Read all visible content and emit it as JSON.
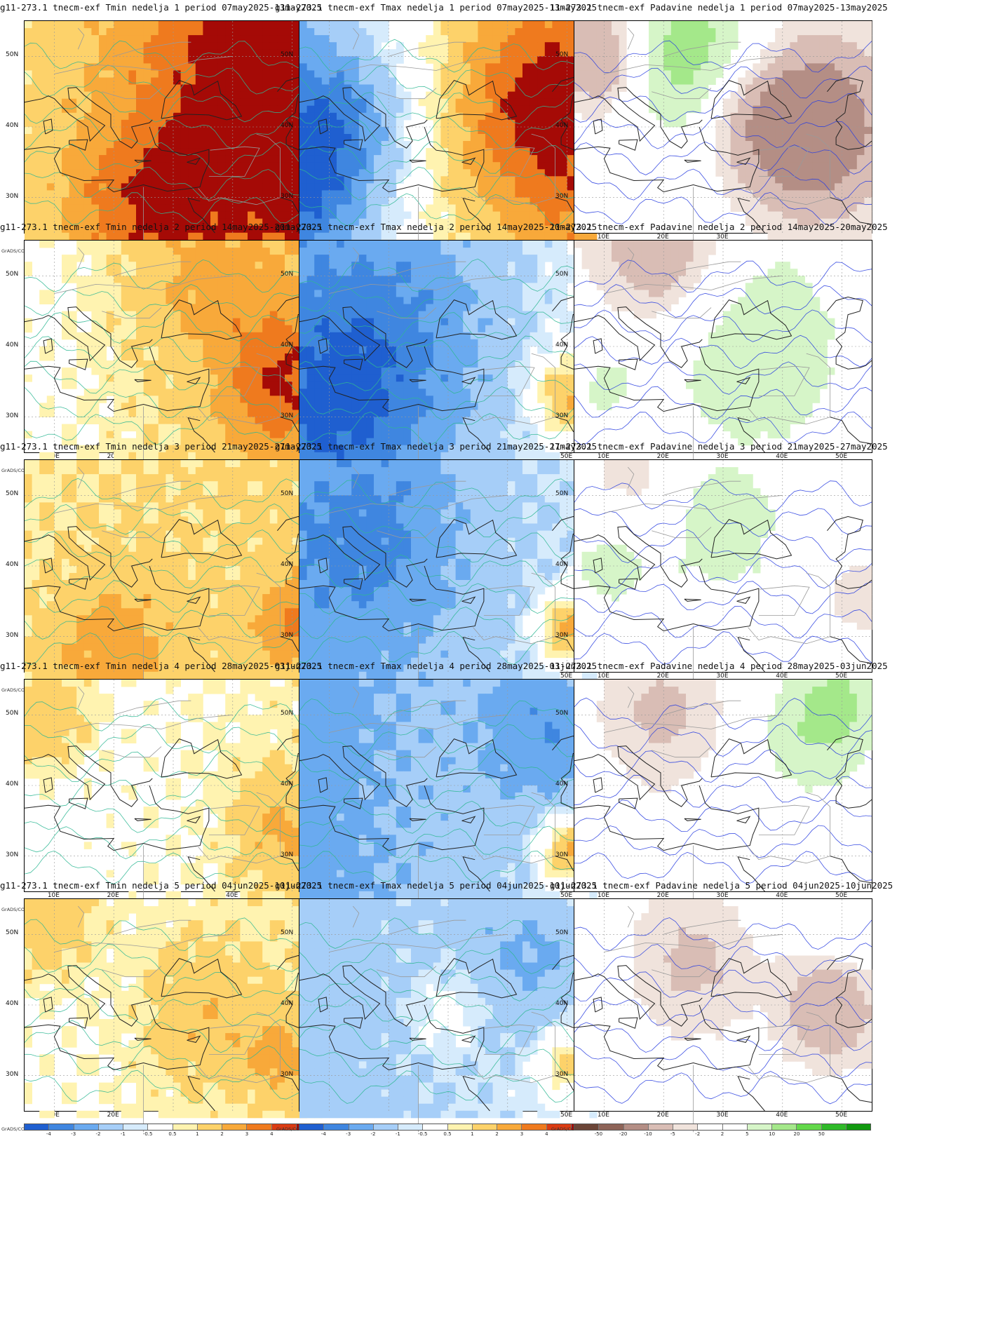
{
  "palettes": {
    "temp": [
      "#1f5fd0",
      "#3f86e0",
      "#6aaaf0",
      "#a6cef8",
      "#d6ebfc",
      "#ffffff",
      "#fff3b0",
      "#fdd26a",
      "#f8a93a",
      "#ef7a1e",
      "#dc3b12",
      "#a50a06"
    ],
    "precip": [
      "#6b4537",
      "#8e6458",
      "#b48e85",
      "#d9bdb5",
      "#f0e3dc",
      "#ffffff",
      "#ffffff",
      "#d6f5c8",
      "#a4e88a",
      "#63d84a",
      "#2fba28",
      "#11990f"
    ]
  },
  "colorbar_labels": {
    "temp": [
      "-4",
      "-3",
      "-2",
      "-1",
      "-0.5",
      "0.5",
      "1",
      "2",
      "3",
      "4"
    ],
    "precip": [
      "-50",
      "-20",
      "-10",
      "-5",
      "-2",
      "2",
      "5",
      "10",
      "20",
      "50"
    ]
  },
  "axis": {
    "x_labels": [
      "10E",
      "20E",
      "30E",
      "40E",
      "50E"
    ],
    "y_labels": [
      "50N",
      "40N",
      "30N"
    ],
    "lon_range": [
      5,
      55
    ],
    "lat_range": [
      25,
      55
    ]
  },
  "credit": "GrADS/COLA",
  "panels": [
    {
      "title": "g11-273.1 tnecm-exf Tmin nedelja 1 period 07may2025-13may2025",
      "palette": "temp",
      "anom": {
        "bias": 2.4,
        "tilt": 1.2,
        "blobs": [
          [
            45,
            44,
            18,
            2.5
          ],
          [
            25,
            28,
            12,
            1.8
          ]
        ]
      }
    },
    {
      "title": "g11-273.1 tnecm-exf Tmax nedelja 1 period 07may2025-13may2025",
      "palette": "temp",
      "anom": {
        "bias": 0.6,
        "tilt": 2.0,
        "blobs": [
          [
            45,
            42,
            14,
            3.0
          ],
          [
            10,
            40,
            12,
            -2.8
          ],
          [
            5,
            30,
            10,
            -2.0
          ]
        ]
      }
    },
    {
      "title": "11-273.1 tnecm-exf Padavine nedelja 1 period 07may2025-13may2025",
      "palette": "precip",
      "anom": {
        "bias": 0.0,
        "tilt": 0.0,
        "blobs": [
          [
            24,
            50,
            12,
            14
          ],
          [
            10,
            50,
            8,
            -12
          ],
          [
            45,
            40,
            12,
            -18
          ],
          [
            32,
            42,
            8,
            -6
          ]
        ]
      }
    },
    {
      "title": "g11-273.1 tnecm-exf Tmin nedelja 2 period 14may2025-20may2025",
      "palette": "temp",
      "anom": {
        "bias": 1.0,
        "tilt": 0.8,
        "blobs": [
          [
            48,
            35,
            10,
            2.5
          ],
          [
            35,
            50,
            12,
            1.2
          ]
        ]
      }
    },
    {
      "title": "g11-273.1 tnecm-exf Tmax nedelja 2 period 14may2025-20may2025",
      "palette": "temp",
      "anom": {
        "bias": -1.4,
        "tilt": 1.0,
        "blobs": [
          [
            20,
            40,
            16,
            -1.8
          ],
          [
            50,
            33,
            6,
            2.5
          ],
          [
            10,
            30,
            12,
            -1.5
          ]
        ]
      }
    },
    {
      "title": "11-273.1 tnecm-exf Padavine nedelja 2 period 14may2025-20may2025",
      "palette": "precip",
      "anom": {
        "bias": 0.5,
        "tilt": 0.0,
        "blobs": [
          [
            35,
            40,
            16,
            9
          ],
          [
            20,
            53,
            12,
            -10
          ],
          [
            10,
            35,
            8,
            5
          ]
        ]
      }
    },
    {
      "title": "g11-273.1 tnecm-exf Tmin nedelja 3 period 21may2025-27may2025",
      "palette": "temp",
      "anom": {
        "bias": 1.1,
        "tilt": 0.2,
        "blobs": [
          [
            20,
            28,
            10,
            1.6
          ],
          [
            50,
            32,
            6,
            2.0
          ]
        ]
      }
    },
    {
      "title": "g11-273.1 tnecm-exf Tmax nedelja 3 period 21may2025-27may2025",
      "palette": "temp",
      "anom": {
        "bias": -1.5,
        "tilt": 0.8,
        "blobs": [
          [
            18,
            44,
            14,
            -1.5
          ],
          [
            50,
            31,
            5,
            3.0
          ]
        ]
      }
    },
    {
      "title": "11-273.1 tnecm-exf Padavine nedelja 3 period 21may2025-27may2025",
      "palette": "precip",
      "anom": {
        "bias": 0.0,
        "tilt": 0.0,
        "blobs": [
          [
            30,
            46,
            14,
            7
          ],
          [
            10,
            40,
            8,
            6
          ],
          [
            15,
            52,
            8,
            -5
          ],
          [
            52,
            36,
            6,
            -4
          ]
        ]
      }
    },
    {
      "title": "g11-273.1 tnecm-exf Tmin nedelja 4 period 28may2025-03jun2025",
      "palette": "temp",
      "anom": {
        "bias": 0.4,
        "tilt": 0.4,
        "blobs": [
          [
            8,
            50,
            8,
            1.8
          ],
          [
            48,
            34,
            8,
            1.5
          ]
        ]
      }
    },
    {
      "title": "g11-273.1 tnecm-exf Tmax nedelja 4 period 28may2025-03jun2025",
      "palette": "temp",
      "anom": {
        "bias": -1.6,
        "tilt": 1.0,
        "blobs": [
          [
            48,
            48,
            12,
            -2.0
          ],
          [
            50,
            31,
            5,
            3.0
          ]
        ]
      }
    },
    {
      "title": "11-273.1 tnecm-exf Padavine nedelja 4 period 28may2025-03jun2025",
      "palette": "precip",
      "anom": {
        "bias": 0.0,
        "tilt": 0.0,
        "blobs": [
          [
            45,
            47,
            10,
            8
          ],
          [
            20,
            50,
            10,
            -6
          ],
          [
            50,
            53,
            8,
            7
          ]
        ]
      }
    },
    {
      "title": "g11-273.1 tnecm-exf Tmin nedelja 5 period 04jun2025-10jun2025",
      "palette": "temp",
      "anom": {
        "bias": 0.6,
        "tilt": 0.3,
        "blobs": [
          [
            8,
            52,
            8,
            1.5
          ],
          [
            35,
            39,
            10,
            1.2
          ],
          [
            48,
            33,
            6,
            1.6
          ]
        ]
      }
    },
    {
      "title": "g11-273.1 tnecm-exf Tmax nedelja 5 period 04jun2025-10jun2025",
      "palette": "temp",
      "anom": {
        "bias": -1.0,
        "tilt": 0.6,
        "blobs": [
          [
            45,
            47,
            12,
            -1.5
          ],
          [
            50,
            32,
            5,
            2.0
          ],
          [
            30,
            39,
            6,
            1.0
          ]
        ]
      }
    },
    {
      "title": "g11-273.1 tnecm-exf Padavine nedelja 5 period 04jun2025-10jun2025",
      "palette": "precip",
      "anom": {
        "bias": 0.0,
        "tilt": 0.0,
        "blobs": [
          [
            25,
            46,
            10,
            -6
          ],
          [
            48,
            40,
            8,
            -10
          ],
          [
            50,
            52,
            8,
            5
          ]
        ]
      }
    }
  ]
}
